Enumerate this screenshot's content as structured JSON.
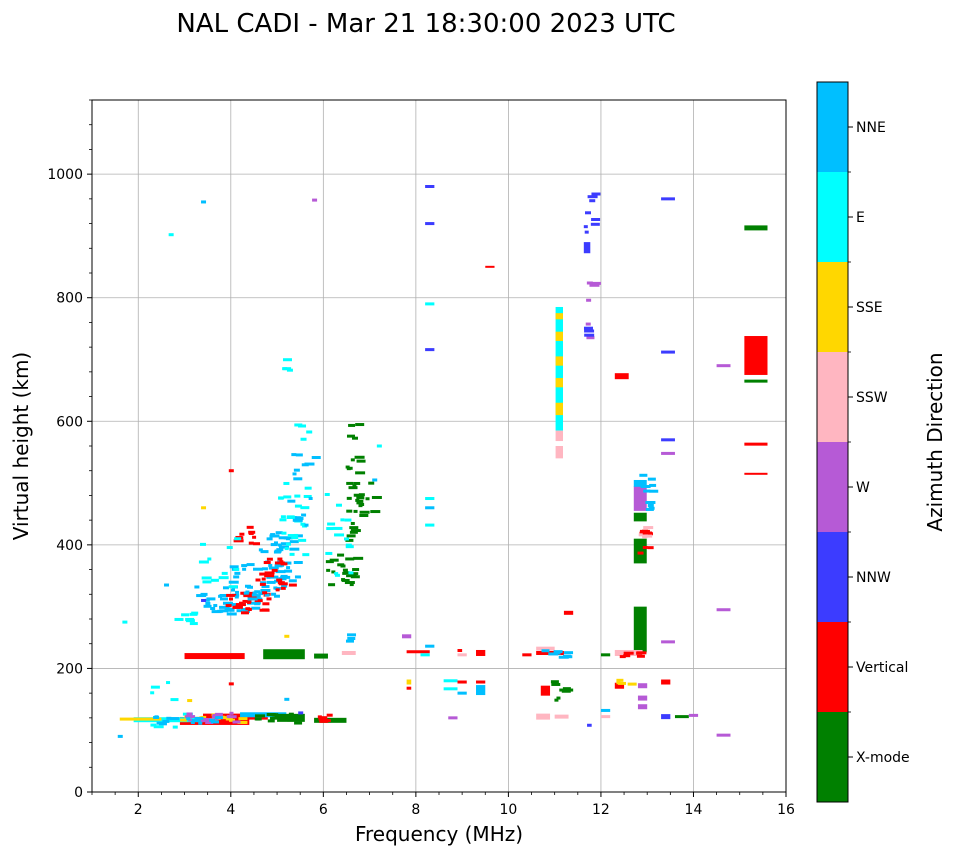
{
  "chart_data": {
    "type": "scatter",
    "title": "NAL CADI - Mar 21 18:30:00 2023 UTC",
    "xlabel": "Frequency (MHz)",
    "ylabel": "Virtual height (km)",
    "xlim": [
      1,
      16
    ],
    "ylim": [
      0,
      1120
    ],
    "xticks": [
      2,
      4,
      6,
      8,
      10,
      12,
      14,
      16
    ],
    "yticks": [
      0,
      200,
      400,
      600,
      800,
      1000
    ],
    "grid": true,
    "legend": "colorbar-right",
    "colorbar": {
      "label": "Azimuth Direction",
      "categories": [
        {
          "name": "X-mode",
          "color": "#008000"
        },
        {
          "name": "Vertical",
          "color": "#ff0000"
        },
        {
          "name": "NNW",
          "color": "#3c3cff"
        },
        {
          "name": "W",
          "color": "#b65ad6"
        },
        {
          "name": "SSW",
          "color": "#ffb6c1"
        },
        {
          "name": "SSE",
          "color": "#ffd700"
        },
        {
          "name": "E",
          "color": "#00ffff"
        },
        {
          "name": "NNE",
          "color": "#00bfff"
        }
      ]
    },
    "segments": [
      {
        "d": "Vertical",
        "f0": 3.0,
        "f1": 4.3,
        "h": 220,
        "t": 6
      },
      {
        "d": "X-mode",
        "f0": 4.7,
        "f1": 5.6,
        "h": 223,
        "t": 10
      },
      {
        "d": "X-mode",
        "f0": 5.8,
        "f1": 6.1,
        "h": 220,
        "t": 5
      },
      {
        "d": "SSW",
        "f0": 6.4,
        "f1": 6.7,
        "h": 225,
        "t": 4
      },
      {
        "d": "Vertical",
        "f0": 2.9,
        "f1": 4.4,
        "h": 115,
        "t": 8
      },
      {
        "d": "Vertical",
        "f0": 3.4,
        "f1": 4.8,
        "h": 122,
        "t": 6
      },
      {
        "d": "E",
        "f0": 1.9,
        "f1": 3.4,
        "h": 117,
        "t": 5
      },
      {
        "d": "NNE",
        "f0": 4.2,
        "f1": 5.2,
        "h": 125,
        "t": 5
      },
      {
        "d": "X-mode",
        "f0": 5.0,
        "f1": 5.6,
        "h": 120,
        "t": 8
      },
      {
        "d": "X-mode",
        "f0": 5.8,
        "f1": 6.5,
        "h": 116,
        "t": 5
      },
      {
        "d": "SSW",
        "f0": 10.6,
        "f1": 10.9,
        "h": 122,
        "t": 6
      },
      {
        "d": "SSW",
        "f0": 11.0,
        "f1": 11.3,
        "h": 122,
        "t": 4
      },
      {
        "d": "Vertical",
        "f0": 10.7,
        "f1": 10.9,
        "h": 164,
        "t": 10
      },
      {
        "d": "X-mode",
        "f0": 11.1,
        "f1": 11.4,
        "h": 165,
        "t": 3
      },
      {
        "d": "Vertical",
        "f0": 12.3,
        "f1": 12.5,
        "h": 172,
        "t": 6
      },
      {
        "d": "SSW",
        "f0": 12.3,
        "f1": 12.9,
        "h": 225,
        "t": 6
      },
      {
        "d": "Vertical",
        "f0": 10.6,
        "f1": 11.2,
        "h": 225,
        "t": 4
      },
      {
        "d": "SSW",
        "f0": 10.6,
        "f1": 11.0,
        "h": 232,
        "t": 4
      },
      {
        "d": "Vertical",
        "f0": 12.3,
        "f1": 12.6,
        "h": 673,
        "t": 6
      },
      {
        "d": "X-mode",
        "f0": 15.1,
        "f1": 15.6,
        "h": 913,
        "t": 5
      },
      {
        "d": "Vertical",
        "f0": 15.1,
        "f1": 15.6,
        "h": 563,
        "t": 3
      },
      {
        "d": "Vertical",
        "f0": 15.1,
        "f1": 15.6,
        "h": 515,
        "t": 2
      },
      {
        "d": "X-mode",
        "f0": 15.1,
        "f1": 15.6,
        "h": 665,
        "t": 3
      },
      {
        "d": "NNW",
        "f0": 13.3,
        "f1": 13.6,
        "h": 960,
        "t": 3
      },
      {
        "d": "NNW",
        "f0": 13.3,
        "f1": 13.6,
        "h": 712,
        "t": 3
      },
      {
        "d": "NNW",
        "f0": 13.3,
        "f1": 13.6,
        "h": 570,
        "t": 3
      },
      {
        "d": "W",
        "f0": 13.3,
        "f1": 13.6,
        "h": 548,
        "t": 3
      },
      {
        "d": "W",
        "f0": 13.3,
        "f1": 13.6,
        "h": 243,
        "t": 3
      },
      {
        "d": "W",
        "f0": 14.5,
        "f1": 14.8,
        "h": 690,
        "t": 3
      },
      {
        "d": "W",
        "f0": 14.5,
        "f1": 14.8,
        "h": 295,
        "t": 3
      },
      {
        "d": "W",
        "f0": 14.5,
        "f1": 14.8,
        "h": 92,
        "t": 3
      },
      {
        "d": "NNW",
        "f0": 13.3,
        "f1": 13.5,
        "h": 122,
        "t": 5
      },
      {
        "d": "X-mode",
        "f0": 13.6,
        "f1": 13.9,
        "h": 122,
        "t": 3
      },
      {
        "d": "W",
        "f0": 13.9,
        "f1": 14.1,
        "h": 124,
        "t": 3
      },
      {
        "d": "Vertical",
        "f0": 13.3,
        "f1": 13.5,
        "h": 178,
        "t": 5
      },
      {
        "d": "NNW",
        "f0": 8.2,
        "f1": 8.4,
        "h": 980,
        "t": 3
      },
      {
        "d": "NNW",
        "f0": 8.2,
        "f1": 8.4,
        "h": 920,
        "t": 3
      },
      {
        "d": "E",
        "f0": 8.2,
        "f1": 8.4,
        "h": 790,
        "t": 3
      },
      {
        "d": "NNW",
        "f0": 8.2,
        "f1": 8.4,
        "h": 716,
        "t": 3
      },
      {
        "d": "E",
        "f0": 8.2,
        "f1": 8.4,
        "h": 475,
        "t": 3
      },
      {
        "d": "NNE",
        "f0": 8.2,
        "f1": 8.4,
        "h": 460,
        "t": 3
      },
      {
        "d": "E",
        "f0": 8.2,
        "f1": 8.4,
        "h": 432,
        "t": 3
      },
      {
        "d": "NNE",
        "f0": 8.2,
        "f1": 8.4,
        "h": 236,
        "t": 3
      },
      {
        "d": "Vertical",
        "f0": 7.8,
        "f1": 8.3,
        "h": 227,
        "t": 3
      },
      {
        "d": "W",
        "f0": 7.7,
        "f1": 7.9,
        "h": 252,
        "t": 4
      },
      {
        "d": "E",
        "f0": 8.1,
        "f1": 8.3,
        "h": 222,
        "t": 3
      },
      {
        "d": "Vertical",
        "f0": 8.9,
        "f1": 9.0,
        "h": 229,
        "t": 3
      },
      {
        "d": "Vertical",
        "f0": 9.3,
        "f1": 9.5,
        "h": 225,
        "t": 6
      },
      {
        "d": "SSW",
        "f0": 8.9,
        "f1": 9.1,
        "h": 222,
        "t": 3
      },
      {
        "d": "Vertical",
        "f0": 9.5,
        "f1": 9.7,
        "h": 850,
        "t": 2
      },
      {
        "d": "Vertical",
        "f0": 11.2,
        "f1": 11.4,
        "h": 290,
        "t": 4
      },
      {
        "d": "Vertical",
        "f0": 10.3,
        "f1": 10.5,
        "h": 222,
        "t": 3
      },
      {
        "d": "X-mode",
        "f0": 12.0,
        "f1": 12.2,
        "h": 222,
        "t": 3
      },
      {
        "d": "E",
        "f0": 8.6,
        "f1": 8.9,
        "h": 180,
        "t": 3
      },
      {
        "d": "E",
        "f0": 8.6,
        "f1": 8.9,
        "h": 167,
        "t": 3
      },
      {
        "d": "NNE",
        "f0": 8.9,
        "f1": 9.1,
        "h": 160,
        "t": 3
      },
      {
        "d": "Vertical",
        "f0": 8.9,
        "f1": 9.1,
        "h": 178,
        "t": 3
      },
      {
        "d": "NNE",
        "f0": 9.3,
        "f1": 9.5,
        "h": 165,
        "t": 10
      },
      {
        "d": "Vertical",
        "f0": 9.3,
        "f1": 9.5,
        "h": 178,
        "t": 3
      },
      {
        "d": "SSE",
        "f0": 7.8,
        "f1": 7.9,
        "h": 178,
        "t": 5
      },
      {
        "d": "Vertical",
        "f0": 7.8,
        "f1": 7.9,
        "h": 168,
        "t": 3
      },
      {
        "d": "W",
        "f0": 12.8,
        "f1": 13.0,
        "h": 172,
        "t": 5
      },
      {
        "d": "W",
        "f0": 12.8,
        "f1": 13.0,
        "h": 152,
        "t": 5
      },
      {
        "d": "W",
        "f0": 12.8,
        "f1": 13.0,
        "h": 138,
        "t": 5
      },
      {
        "d": "SSW",
        "f0": 12.0,
        "f1": 12.2,
        "h": 122,
        "t": 3
      },
      {
        "d": "NNE",
        "f0": 12.0,
        "f1": 12.2,
        "h": 132,
        "t": 3
      },
      {
        "d": "NNW",
        "f0": 11.7,
        "f1": 11.8,
        "h": 108,
        "t": 3
      },
      {
        "d": "W",
        "f0": 8.7,
        "f1": 8.9,
        "h": 120,
        "t": 3
      },
      {
        "d": "SSE",
        "f0": 1.6,
        "f1": 2.5,
        "h": 118,
        "t": 3
      }
    ],
    "columns": [
      {
        "d": "X-mode",
        "f": 12.85,
        "w": 0.28,
        "h0": 226,
        "h1": 300
      },
      {
        "d": "X-mode",
        "f": 12.85,
        "w": 0.28,
        "h0": 370,
        "h1": 410
      },
      {
        "d": "X-mode",
        "f": 12.85,
        "w": 0.28,
        "h0": 438,
        "h1": 452
      },
      {
        "d": "W",
        "f": 12.85,
        "w": 0.28,
        "h0": 455,
        "h1": 495
      },
      {
        "d": "NNE",
        "f": 12.85,
        "w": 0.28,
        "h0": 494,
        "h1": 505
      },
      {
        "d": "Vertical",
        "f": 15.35,
        "w": 0.5,
        "h0": 675,
        "h1": 738
      },
      {
        "d": "E",
        "f": 11.1,
        "w": 0.16,
        "h0": 585,
        "h1": 785
      },
      {
        "d": "SSE",
        "f": 11.1,
        "w": 0.16,
        "h0": 610,
        "h1": 630
      },
      {
        "d": "SSE",
        "f": 11.1,
        "w": 0.16,
        "h0": 655,
        "h1": 670
      },
      {
        "d": "SSE",
        "f": 11.1,
        "w": 0.16,
        "h0": 690,
        "h1": 705
      },
      {
        "d": "SSE",
        "f": 11.1,
        "w": 0.16,
        "h0": 730,
        "h1": 745
      },
      {
        "d": "SSE",
        "f": 11.1,
        "w": 0.16,
        "h0": 765,
        "h1": 775
      },
      {
        "d": "SSW",
        "f": 11.1,
        "w": 0.16,
        "h0": 568,
        "h1": 585
      },
      {
        "d": "SSW",
        "f": 11.1,
        "w": 0.16,
        "h0": 540,
        "h1": 560
      },
      {
        "d": "NNW",
        "f": 11.7,
        "w": 0.14,
        "h0": 872,
        "h1": 890
      }
    ],
    "clusters": [
      {
        "d": "NNE",
        "fc": 3.9,
        "fw": 0.7,
        "hc": 310,
        "hw": 22,
        "n": 45
      },
      {
        "d": "Vertical",
        "fc": 4.3,
        "fw": 0.5,
        "hc": 305,
        "hw": 18,
        "n": 25
      },
      {
        "d": "NNE",
        "fc": 4.5,
        "fw": 0.6,
        "hc": 340,
        "hw": 30,
        "n": 35
      },
      {
        "d": "NNE",
        "fc": 5.0,
        "fw": 0.4,
        "hc": 380,
        "hw": 40,
        "n": 35
      },
      {
        "d": "Vertical",
        "fc": 4.9,
        "fw": 0.4,
        "hc": 345,
        "hw": 35,
        "n": 20
      },
      {
        "d": "E",
        "fc": 5.3,
        "fw": 0.3,
        "hc": 440,
        "hw": 60,
        "n": 25
      },
      {
        "d": "NNE",
        "fc": 5.5,
        "fw": 0.3,
        "hc": 500,
        "hw": 70,
        "n": 15
      },
      {
        "d": "X-mode",
        "fc": 6.3,
        "fw": 0.3,
        "hc": 360,
        "hw": 25,
        "n": 20
      },
      {
        "d": "X-mode",
        "fc": 6.6,
        "fw": 0.15,
        "hc": 450,
        "hw": 90,
        "n": 20
      },
      {
        "d": "X-mode",
        "fc": 6.9,
        "fw": 0.15,
        "hc": 470,
        "hw": 30,
        "n": 10
      },
      {
        "d": "E",
        "fc": 6.3,
        "fw": 0.3,
        "hc": 420,
        "hw": 70,
        "n": 15
      },
      {
        "d": "Vertical",
        "fc": 4.2,
        "fw": 0.3,
        "hc": 420,
        "hw": 20,
        "n": 10
      },
      {
        "d": "E",
        "fc": 3.7,
        "fw": 0.4,
        "hc": 370,
        "hw": 40,
        "n": 12
      },
      {
        "d": "E",
        "fc": 3.0,
        "fw": 0.3,
        "hc": 280,
        "hw": 12,
        "n": 8
      },
      {
        "d": "E",
        "fc": 2.6,
        "fw": 0.5,
        "hc": 150,
        "hw": 50,
        "n": 10
      },
      {
        "d": "SSE",
        "fc": 3.3,
        "fw": 0.9,
        "hc": 118,
        "hw": 8,
        "n": 15
      },
      {
        "d": "W",
        "fc": 3.6,
        "fw": 0.6,
        "hc": 120,
        "hw": 8,
        "n": 15
      },
      {
        "d": "NNE",
        "fc": 3.0,
        "fw": 0.7,
        "hc": 116,
        "hw": 6,
        "n": 15
      },
      {
        "d": "X-mode",
        "fc": 4.9,
        "fw": 0.5,
        "hc": 118,
        "hw": 8,
        "n": 15
      },
      {
        "d": "Vertical",
        "fc": 5.9,
        "fw": 0.2,
        "hc": 122,
        "hw": 10,
        "n": 6
      },
      {
        "d": "X-mode",
        "fc": 6.6,
        "fw": 0.1,
        "hc": 560,
        "hw": 80,
        "n": 10
      },
      {
        "d": "X-mode",
        "fc": 11.0,
        "fw": 0.2,
        "hc": 165,
        "hw": 20,
        "n": 6
      },
      {
        "d": "NNE",
        "fc": 12.95,
        "fw": 0.12,
        "hc": 485,
        "hw": 30,
        "n": 10
      },
      {
        "d": "Vertical",
        "fc": 12.9,
        "fw": 0.12,
        "hc": 405,
        "hw": 20,
        "n": 8
      },
      {
        "d": "SSW",
        "fc": 12.9,
        "fw": 0.12,
        "hc": 420,
        "hw": 8,
        "n": 4
      },
      {
        "d": "NNW",
        "fc": 11.7,
        "fw": 0.1,
        "hc": 940,
        "hw": 40,
        "n": 8
      },
      {
        "d": "W",
        "fc": 11.7,
        "fw": 0.1,
        "hc": 780,
        "hw": 50,
        "n": 6
      },
      {
        "d": "NNW",
        "fc": 11.7,
        "fw": 0.1,
        "hc": 745,
        "hw": 8,
        "n": 3
      },
      {
        "d": "NNE",
        "fc": 11.0,
        "fw": 0.3,
        "hc": 225,
        "hw": 8,
        "n": 8
      },
      {
        "d": "Vertical",
        "fc": 12.5,
        "fw": 0.3,
        "hc": 224,
        "hw": 6,
        "n": 6
      },
      {
        "d": "SSE",
        "fc": 12.6,
        "fw": 0.3,
        "hc": 176,
        "hw": 6,
        "n": 4
      },
      {
        "d": "E",
        "fc": 5.1,
        "fw": 0.2,
        "hc": 690,
        "hw": 12,
        "n": 4
      },
      {
        "d": "E",
        "fc": 5.5,
        "fw": 0.2,
        "hc": 585,
        "hw": 20,
        "n": 4
      },
      {
        "d": "NNE",
        "fc": 6.4,
        "fw": 0.2,
        "hc": 250,
        "hw": 6,
        "n": 3
      }
    ],
    "points": [
      {
        "d": "NNE",
        "f": 3.4,
        "h": 955
      },
      {
        "d": "E",
        "f": 2.7,
        "h": 902
      },
      {
        "d": "W",
        "f": 5.8,
        "h": 958
      },
      {
        "d": "Vertical",
        "f": 4.0,
        "h": 520
      },
      {
        "d": "SSE",
        "f": 3.4,
        "h": 460
      },
      {
        "d": "E",
        "f": 1.7,
        "h": 275
      },
      {
        "d": "NNE",
        "f": 1.6,
        "h": 90
      },
      {
        "d": "SSE",
        "f": 3.1,
        "h": 148
      },
      {
        "d": "SSE",
        "f": 5.2,
        "h": 252
      },
      {
        "d": "NNW",
        "f": 3.4,
        "h": 310
      },
      {
        "d": "NNE",
        "f": 5.2,
        "h": 150
      },
      {
        "d": "Vertical",
        "f": 4.0,
        "h": 175
      },
      {
        "d": "NNW",
        "f": 5.5,
        "h": 128
      },
      {
        "d": "NNE",
        "f": 7.1,
        "h": 505
      },
      {
        "d": "E",
        "f": 7.2,
        "h": 560
      },
      {
        "d": "NNE",
        "f": 2.6,
        "h": 335
      }
    ]
  }
}
